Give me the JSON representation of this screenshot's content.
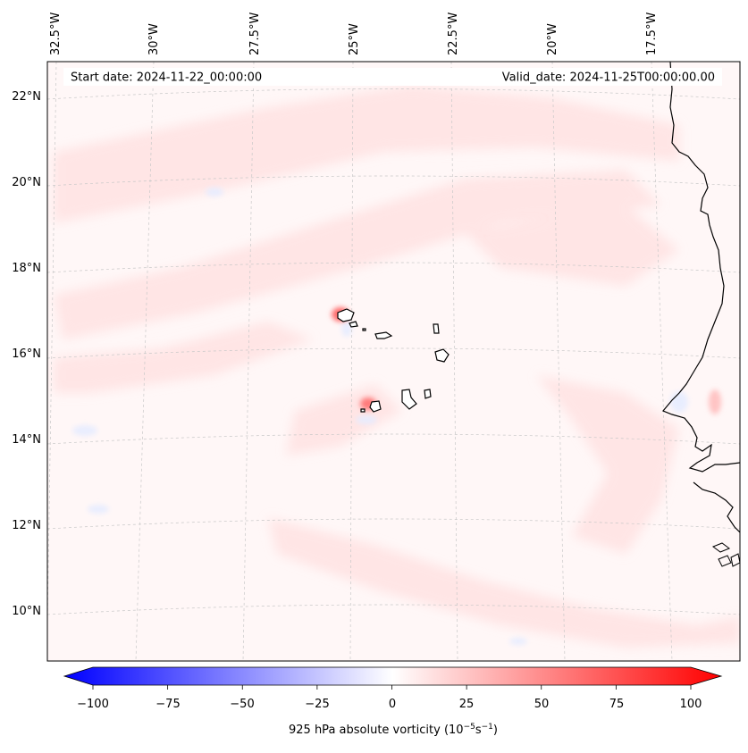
{
  "map": {
    "start_label": "Start date: 2024-11-22_00:00:00",
    "valid_label": "Valid_date: 2024-11-25T00:00:00.00",
    "lon_labels": [
      "32.5°W",
      "30°W",
      "27.5°W",
      "25°W",
      "22.5°W",
      "20°W",
      "17.5°W"
    ],
    "lat_labels": [
      "22°N",
      "20°N",
      "18°N",
      "16°N",
      "14°N",
      "12°N",
      "10°N"
    ]
  },
  "colorbar": {
    "ticks": [
      "−100",
      "−75",
      "−50",
      "−25",
      "0",
      "25",
      "50",
      "75",
      "100"
    ],
    "label": "925 hPa absolute vorticity (10",
    "label_exp1": "−5",
    "label_mid": "s",
    "label_exp2": "−1",
    "label_end": ")",
    "min_color": "#0000ff",
    "mid_color": "#ffffff",
    "max_color": "#ff0000"
  }
}
